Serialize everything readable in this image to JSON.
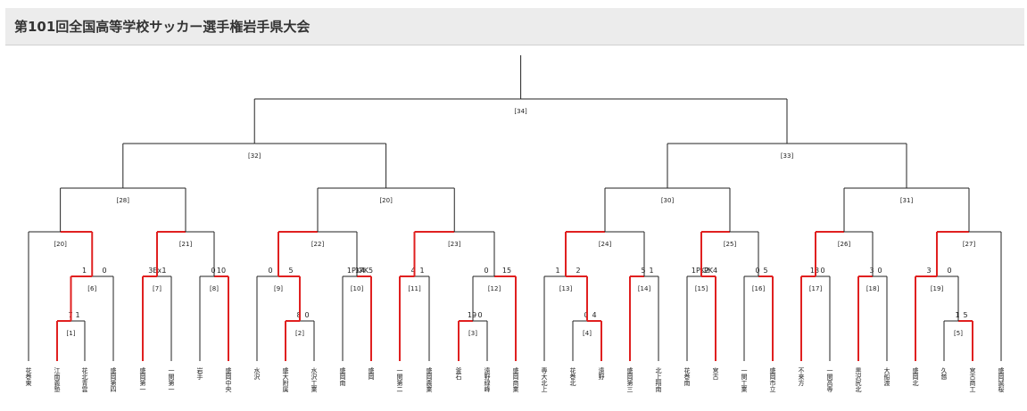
{
  "title": "第101回全国高等学校サッカー選手権岩手県大会",
  "teams": [
    "花巻東",
    "江南義塾",
    "花北青雲",
    "盛岡第四",
    "盛岡第一",
    "一関第一",
    "岩手",
    "盛岡中央",
    "水沢",
    "盛大附属",
    "水沢工業",
    "盛岡南",
    "盛岡",
    "一関第二",
    "盛岡農業",
    "釜石",
    "遠野緑峰",
    "盛岡商業",
    "専大北上",
    "花巻北",
    "遠野",
    "盛岡第三",
    "北上翔南",
    "花巻南",
    "宮古",
    "一関工業",
    "盛岡市立",
    "不来方",
    "一関高専",
    "黒沢尻北",
    "大船渡",
    "盛岡北",
    "久慈",
    "宮古商工",
    "盛岡誠桜"
  ],
  "matches": [
    {
      "id": "[1]",
      "left": "7",
      "right": "1",
      "winner": "left"
    },
    {
      "id": "[2]",
      "left": "8",
      "right": "0",
      "winner": "left"
    },
    {
      "id": "[3]",
      "left": "19",
      "right": "0",
      "winner": "left"
    },
    {
      "id": "[4]",
      "left": "0",
      "right": "4",
      "winner": "right"
    },
    {
      "id": "[5]",
      "left": "1",
      "right": "5",
      "winner": "right"
    },
    {
      "id": "[6]",
      "left": "1",
      "right": "0",
      "winner": "left"
    },
    {
      "id": "[7]",
      "left": "3Ex.",
      "right": "1",
      "winner": "left"
    },
    {
      "id": "[8]",
      "left": "0",
      "right": "10",
      "winner": "right"
    },
    {
      "id": "[9]",
      "left": "0",
      "right": "5",
      "winner": "right"
    },
    {
      "id": "[10]",
      "left": "1PK4",
      "right": "1PK5",
      "winner": "right"
    },
    {
      "id": "[11]",
      "left": "4",
      "right": "1",
      "winner": "left"
    },
    {
      "id": "[12]",
      "left": "0",
      "right": "15",
      "winner": "right"
    },
    {
      "id": "[13]",
      "left": "1",
      "right": "2",
      "winner": "right"
    },
    {
      "id": "[14]",
      "left": "5",
      "right": "1",
      "winner": "left"
    },
    {
      "id": "[15]",
      "left": "1PK2",
      "right": "1PK4",
      "winner": "right"
    },
    {
      "id": "[16]",
      "left": "0",
      "right": "5",
      "winner": "right"
    },
    {
      "id": "[17]",
      "left": "13",
      "right": "0",
      "winner": "left"
    },
    {
      "id": "[18]",
      "left": "3",
      "right": "0",
      "winner": "left"
    },
    {
      "id": "[19]",
      "left": "3",
      "right": "0",
      "winner": "left"
    },
    {
      "id": "[20]",
      "left": "",
      "right": "",
      "winner": "right"
    },
    {
      "id": "[21]",
      "left": "",
      "right": "",
      "winner": "left"
    },
    {
      "id": "[22]",
      "left": "",
      "right": "",
      "winner": "left"
    },
    {
      "id": "[23]",
      "left": "",
      "right": "",
      "winner": "left"
    },
    {
      "id": "[24]",
      "left": "",
      "right": "",
      "winner": "left"
    },
    {
      "id": "[25]",
      "left": "",
      "right": "",
      "winner": "left"
    },
    {
      "id": "[26]",
      "left": "",
      "right": "",
      "winner": "left"
    },
    {
      "id": "[27]",
      "left": "",
      "right": "",
      "winner": "left"
    },
    {
      "id": "[28]",
      "left": "",
      "right": "",
      "winner": "none"
    },
    {
      "id": "[29]",
      "left": "",
      "right": "",
      "winner": "none"
    },
    {
      "id": "[30]",
      "left": "",
      "right": "",
      "winner": "none"
    },
    {
      "id": "[31]",
      "left": "",
      "right": "",
      "winner": "none"
    },
    {
      "id": "[32]",
      "left": "",
      "right": "",
      "winner": "none"
    },
    {
      "id": "[33]",
      "left": "",
      "right": "",
      "winner": "none"
    },
    {
      "id": "[34]",
      "left": "",
      "right": "",
      "winner": "none"
    }
  ],
  "match_labels_override": {
    "[29]": "[20]"
  },
  "colors": {
    "line": "#222222",
    "winner_line": "#e02020",
    "header_bg": "#ececec"
  }
}
